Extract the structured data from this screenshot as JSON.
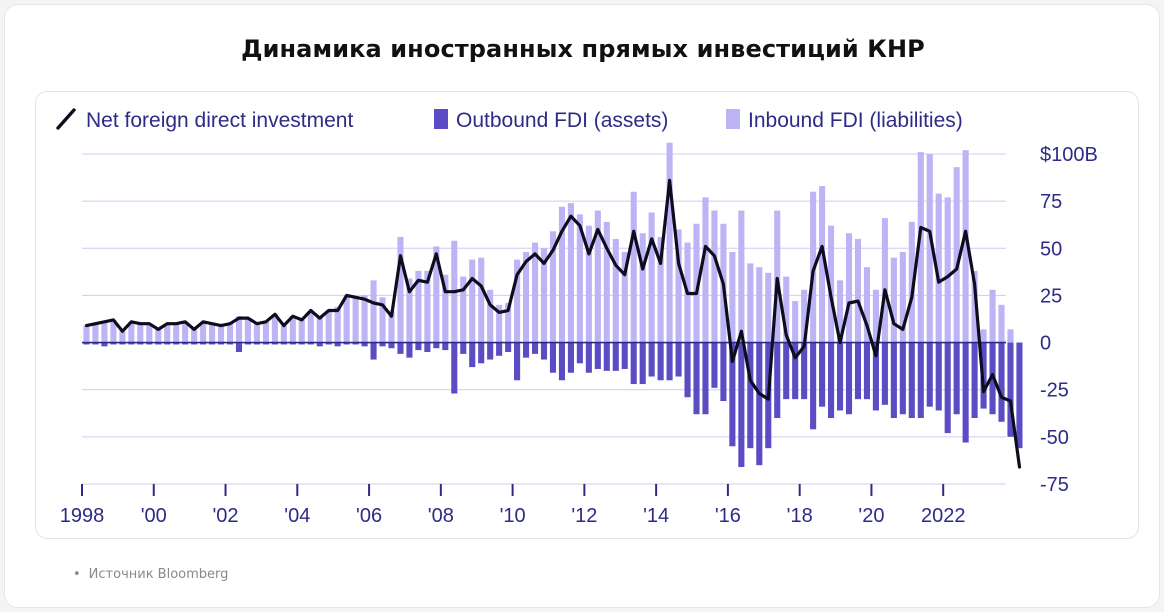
{
  "title": "Динамика иностранных прямых инвестиций КНР",
  "source": "Источник Bloomberg",
  "colors": {
    "line": "#0d0d1f",
    "outbound": "#5b4cc4",
    "inbound": "#bdb4f5",
    "grid": "#cfcbf1",
    "text": "#2e2b87",
    "zero": "#2e2b87"
  },
  "chart_data": {
    "type": "bar",
    "legend_position": "top-left",
    "grid": true,
    "y_axis_side": "right",
    "ylim": [
      -75,
      100
    ],
    "yticks": [
      100,
      75,
      50,
      25,
      0,
      -25,
      -50,
      -75
    ],
    "ytick_labels": [
      "$100B",
      "75",
      "50",
      "25",
      "0",
      "-25",
      "-50",
      "-75"
    ],
    "xlim": [
      1998,
      2023.75
    ],
    "xticks": [
      1998,
      2000,
      2002,
      2004,
      2006,
      2008,
      2010,
      2012,
      2014,
      2016,
      2018,
      2020,
      2022
    ],
    "xtick_labels": [
      "1998",
      "'00",
      "'02",
      "'04",
      "'06",
      "'08",
      "'10",
      "'12",
      "'14",
      "'16",
      "'18",
      "'20",
      "2022"
    ],
    "quarter_start": 1998.0,
    "series": [
      {
        "name": "Net foreign direct investment",
        "kind": "line",
        "values": [
          9,
          10,
          11,
          12,
          6,
          11,
          10,
          10,
          7,
          10,
          10,
          11,
          7,
          11,
          10,
          9,
          10,
          13,
          13,
          10,
          11,
          15,
          9,
          14,
          12,
          17,
          13,
          17,
          17,
          25,
          24,
          23,
          21,
          20,
          14,
          46,
          27,
          33,
          32,
          47,
          27,
          27,
          28,
          34,
          30,
          20,
          16,
          17,
          36,
          43,
          47,
          42,
          49,
          59,
          67,
          62,
          47,
          60,
          50,
          41,
          36,
          59,
          39,
          55,
          42,
          86,
          42,
          26,
          26,
          51,
          46,
          31,
          -10,
          6,
          -20,
          -27,
          -30,
          34,
          4,
          -8,
          -2,
          38,
          51,
          24,
          0,
          21,
          22,
          9,
          -7,
          28,
          10,
          7,
          24,
          61,
          59,
          32,
          35,
          39,
          59,
          31,
          -26,
          -17,
          -29,
          -31,
          -66
        ]
      },
      {
        "name": "Outbound FDI (assets)",
        "kind": "bar",
        "values": [
          -1,
          -1,
          -2,
          -1,
          -1,
          -1,
          -1,
          -1,
          -1,
          -1,
          -1,
          -1,
          -1,
          -1,
          -1,
          -1,
          -1,
          -5,
          -1,
          -1,
          -1,
          -1,
          -1,
          -1,
          -1,
          -1,
          -2,
          -1,
          -2,
          -1,
          -1,
          -2,
          -9,
          -2,
          -3,
          -6,
          -8,
          -4,
          -5,
          -3,
          -4,
          -27,
          -6,
          -13,
          -11,
          -9,
          -7,
          -5,
          -20,
          -8,
          -6,
          -9,
          -16,
          -20,
          -16,
          -11,
          -16,
          -14,
          -15,
          -15,
          -14,
          -22,
          -22,
          -18,
          -20,
          -20,
          -18,
          -29,
          -38,
          -38,
          -24,
          -31,
          -55,
          -66,
          -56,
          -65,
          -56,
          -40,
          -30,
          -30,
          -30,
          -46,
          -34,
          -40,
          -36,
          -38,
          -30,
          -30,
          -36,
          -33,
          -40,
          -38,
          -40,
          -40,
          -34,
          -36,
          -48,
          -38,
          -53,
          -40,
          -35,
          -38,
          -42,
          -50,
          -56
        ]
      },
      {
        "name": "Inbound FDI (liabilities)",
        "kind": "bar",
        "values": [
          9,
          10,
          11,
          12,
          6,
          11,
          10,
          10,
          7,
          10,
          10,
          11,
          7,
          11,
          10,
          9,
          10,
          14,
          13,
          10,
          11,
          15,
          9,
          14,
          12,
          17,
          14,
          17,
          19,
          25,
          24,
          25,
          33,
          24,
          17,
          56,
          34,
          38,
          38,
          51,
          36,
          54,
          35,
          44,
          45,
          28,
          20,
          21,
          44,
          48,
          53,
          50,
          59,
          72,
          74,
          68,
          62,
          70,
          64,
          55,
          48,
          80,
          58,
          69,
          56,
          106,
          60,
          53,
          63,
          77,
          70,
          63,
          48,
          70,
          42,
          40,
          37,
          70,
          35,
          22,
          28,
          80,
          83,
          62,
          33,
          58,
          55,
          40,
          28,
          66,
          45,
          48,
          64,
          101,
          100,
          79,
          77,
          93,
          102,
          38,
          7,
          28,
          20,
          7,
          0
        ]
      }
    ]
  }
}
